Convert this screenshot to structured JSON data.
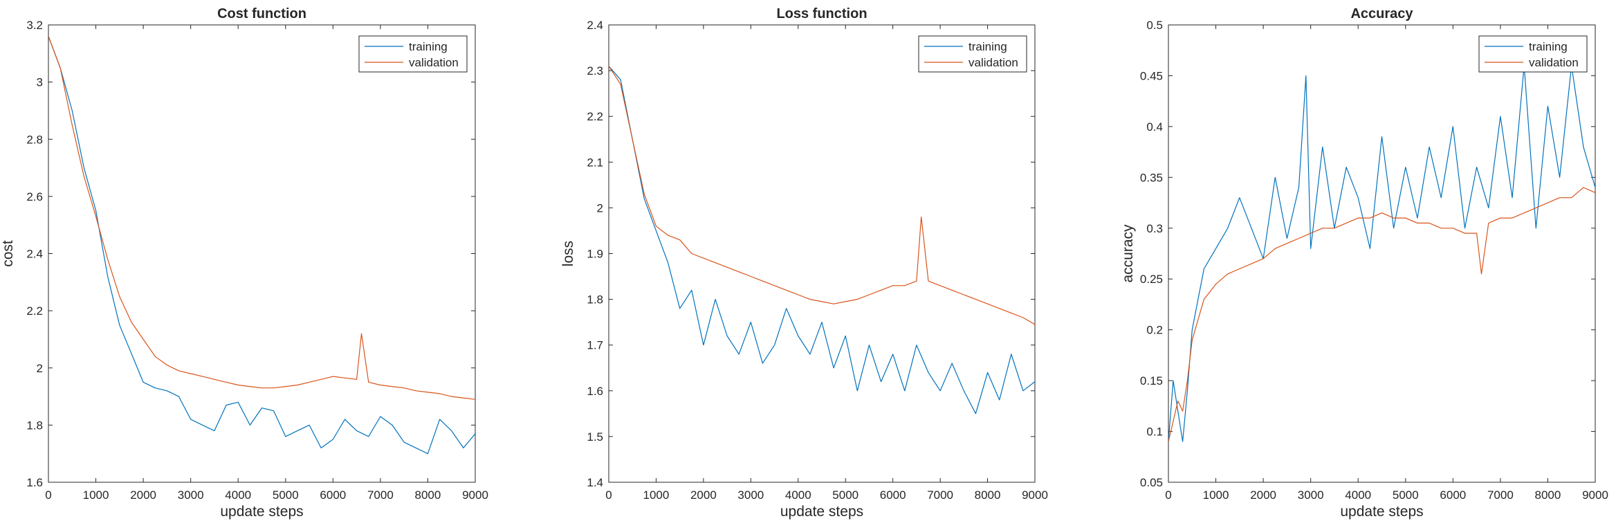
{
  "chart_data": [
    {
      "type": "line",
      "title": "Cost function",
      "xlabel": "update steps",
      "ylabel": "cost",
      "xlim": [
        0,
        9000
      ],
      "ylim": [
        1.6,
        3.2
      ],
      "xticks": [
        0,
        1000,
        2000,
        3000,
        4000,
        5000,
        6000,
        7000,
        8000,
        9000
      ],
      "xtick_labels": [
        "0",
        "1000",
        "2000",
        "3000",
        "4000",
        "5000",
        "6000",
        "7000",
        "8000",
        "9000"
      ],
      "yticks": [
        1.6,
        1.8,
        2.0,
        2.2,
        2.4,
        2.6,
        2.8,
        3.0,
        3.2
      ],
      "ytick_labels": [
        "1.6",
        "1.8",
        "2",
        "2.2",
        "2.4",
        "2.6",
        "2.8",
        "3",
        "3.2"
      ],
      "legend_position": "top-right",
      "grid": false,
      "series": [
        {
          "name": "training",
          "color": "#0072BD",
          "x": [
            0,
            250,
            500,
            750,
            1000,
            1250,
            1500,
            1750,
            2000,
            2250,
            2500,
            2750,
            3000,
            3250,
            3500,
            3750,
            4000,
            4250,
            4500,
            4750,
            5000,
            5250,
            5500,
            5750,
            6000,
            6250,
            6500,
            6750,
            7000,
            7250,
            7500,
            7750,
            8000,
            8250,
            8500,
            8750,
            9000
          ],
          "y": [
            3.16,
            3.05,
            2.9,
            2.7,
            2.55,
            2.32,
            2.15,
            2.05,
            1.95,
            1.93,
            1.92,
            1.9,
            1.82,
            1.8,
            1.78,
            1.87,
            1.88,
            1.8,
            1.86,
            1.85,
            1.76,
            1.78,
            1.8,
            1.72,
            1.75,
            1.82,
            1.78,
            1.76,
            1.83,
            1.8,
            1.74,
            1.72,
            1.7,
            1.82,
            1.78,
            1.72,
            1.77
          ]
        },
        {
          "name": "validation",
          "color": "#D95319",
          "x": [
            0,
            250,
            500,
            750,
            1000,
            1250,
            1500,
            1750,
            2000,
            2250,
            2500,
            2750,
            3000,
            3250,
            3500,
            3750,
            4000,
            4250,
            4500,
            4750,
            5000,
            5250,
            5500,
            5750,
            6000,
            6250,
            6500,
            6600,
            6750,
            7000,
            7250,
            7500,
            7750,
            8000,
            8250,
            8500,
            8750,
            9000
          ],
          "y": [
            3.16,
            3.05,
            2.85,
            2.67,
            2.53,
            2.38,
            2.25,
            2.16,
            2.1,
            2.04,
            2.01,
            1.99,
            1.98,
            1.97,
            1.96,
            1.95,
            1.94,
            1.935,
            1.93,
            1.93,
            1.935,
            1.94,
            1.95,
            1.96,
            1.97,
            1.965,
            1.96,
            2.12,
            1.95,
            1.94,
            1.935,
            1.93,
            1.92,
            1.915,
            1.91,
            1.9,
            1.895,
            1.89
          ]
        }
      ]
    },
    {
      "type": "line",
      "title": "Loss function",
      "xlabel": "update steps",
      "ylabel": "loss",
      "xlim": [
        0,
        9000
      ],
      "ylim": [
        1.4,
        2.4
      ],
      "xticks": [
        0,
        1000,
        2000,
        3000,
        4000,
        5000,
        6000,
        7000,
        8000,
        9000
      ],
      "xtick_labels": [
        "0",
        "1000",
        "2000",
        "3000",
        "4000",
        "5000",
        "6000",
        "7000",
        "8000",
        "9000"
      ],
      "yticks": [
        1.4,
        1.5,
        1.6,
        1.7,
        1.8,
        1.9,
        2.0,
        2.1,
        2.2,
        2.3,
        2.4
      ],
      "ytick_labels": [
        "1.4",
        "1.5",
        "1.6",
        "1.7",
        "1.8",
        "1.9",
        "2",
        "2.1",
        "2.2",
        "2.3",
        "2.4"
      ],
      "legend_position": "top-right",
      "grid": false,
      "series": [
        {
          "name": "training",
          "color": "#0072BD",
          "x": [
            0,
            250,
            500,
            750,
            1000,
            1250,
            1500,
            1750,
            2000,
            2250,
            2500,
            2750,
            3000,
            3250,
            3500,
            3750,
            4000,
            4250,
            4500,
            4750,
            5000,
            5250,
            5500,
            5750,
            6000,
            6250,
            6500,
            6750,
            7000,
            7250,
            7500,
            7750,
            8000,
            8250,
            8500,
            8750,
            9000
          ],
          "y": [
            2.31,
            2.28,
            2.15,
            2.02,
            1.95,
            1.88,
            1.78,
            1.82,
            1.7,
            1.8,
            1.72,
            1.68,
            1.75,
            1.66,
            1.7,
            1.78,
            1.72,
            1.68,
            1.75,
            1.65,
            1.72,
            1.6,
            1.7,
            1.62,
            1.68,
            1.6,
            1.7,
            1.64,
            1.6,
            1.66,
            1.6,
            1.55,
            1.64,
            1.58,
            1.68,
            1.6,
            1.62
          ]
        },
        {
          "name": "validation",
          "color": "#D95319",
          "x": [
            0,
            250,
            500,
            750,
            1000,
            1250,
            1500,
            1750,
            2000,
            2250,
            2500,
            2750,
            3000,
            3250,
            3500,
            3750,
            4000,
            4250,
            4500,
            4750,
            5000,
            5250,
            5500,
            5750,
            6000,
            6250,
            6500,
            6600,
            6750,
            7000,
            7250,
            7500,
            7750,
            8000,
            8250,
            8500,
            8750,
            9000
          ],
          "y": [
            2.31,
            2.27,
            2.15,
            2.03,
            1.96,
            1.94,
            1.93,
            1.9,
            1.89,
            1.88,
            1.87,
            1.86,
            1.85,
            1.84,
            1.83,
            1.82,
            1.81,
            1.8,
            1.795,
            1.79,
            1.795,
            1.8,
            1.81,
            1.82,
            1.83,
            1.83,
            1.84,
            1.98,
            1.84,
            1.83,
            1.82,
            1.81,
            1.8,
            1.79,
            1.78,
            1.77,
            1.76,
            1.745
          ]
        }
      ]
    },
    {
      "type": "line",
      "title": "Accuracy",
      "xlabel": "update steps",
      "ylabel": "accuracy",
      "xlim": [
        0,
        9000
      ],
      "ylim": [
        0.05,
        0.5
      ],
      "xticks": [
        0,
        1000,
        2000,
        3000,
        4000,
        5000,
        6000,
        7000,
        8000,
        9000
      ],
      "xtick_labels": [
        "0",
        "1000",
        "2000",
        "3000",
        "4000",
        "5000",
        "6000",
        "7000",
        "8000",
        "9000"
      ],
      "yticks": [
        0.05,
        0.1,
        0.15,
        0.2,
        0.25,
        0.3,
        0.35,
        0.4,
        0.45,
        0.5
      ],
      "ytick_labels": [
        "0.05",
        "0.1",
        "0.15",
        "0.2",
        "0.25",
        "0.3",
        "0.35",
        "0.4",
        "0.45",
        "0.5"
      ],
      "legend_position": "top-right",
      "grid": false,
      "series": [
        {
          "name": "training",
          "color": "#0072BD",
          "x": [
            0,
            100,
            200,
            300,
            400,
            500,
            750,
            1000,
            1250,
            1500,
            1750,
            2000,
            2250,
            2500,
            2750,
            2900,
            3000,
            3250,
            3500,
            3750,
            4000,
            4250,
            4500,
            4750,
            5000,
            5250,
            5500,
            5750,
            6000,
            6250,
            6500,
            6750,
            7000,
            7250,
            7500,
            7750,
            8000,
            8250,
            8500,
            8750,
            9000
          ],
          "y": [
            0.09,
            0.15,
            0.12,
            0.09,
            0.14,
            0.2,
            0.26,
            0.28,
            0.3,
            0.33,
            0.3,
            0.27,
            0.35,
            0.29,
            0.34,
            0.45,
            0.28,
            0.38,
            0.3,
            0.36,
            0.33,
            0.28,
            0.39,
            0.3,
            0.36,
            0.31,
            0.38,
            0.33,
            0.4,
            0.3,
            0.36,
            0.32,
            0.41,
            0.33,
            0.46,
            0.3,
            0.42,
            0.35,
            0.46,
            0.38,
            0.34
          ]
        },
        {
          "name": "validation",
          "color": "#D95319",
          "x": [
            0,
            100,
            200,
            300,
            400,
            500,
            750,
            1000,
            1250,
            1500,
            1750,
            2000,
            2250,
            2500,
            2750,
            3000,
            3250,
            3500,
            3750,
            4000,
            4250,
            4500,
            4750,
            5000,
            5250,
            5500,
            5750,
            6000,
            6250,
            6500,
            6600,
            6750,
            7000,
            7250,
            7500,
            7750,
            8000,
            8250,
            8500,
            8750,
            9000
          ],
          "y": [
            0.09,
            0.11,
            0.13,
            0.12,
            0.15,
            0.19,
            0.23,
            0.245,
            0.255,
            0.26,
            0.265,
            0.27,
            0.28,
            0.285,
            0.29,
            0.295,
            0.3,
            0.3,
            0.305,
            0.31,
            0.31,
            0.315,
            0.31,
            0.31,
            0.305,
            0.305,
            0.3,
            0.3,
            0.295,
            0.295,
            0.255,
            0.305,
            0.31,
            0.31,
            0.315,
            0.32,
            0.325,
            0.33,
            0.33,
            0.34,
            0.335
          ]
        }
      ]
    }
  ]
}
